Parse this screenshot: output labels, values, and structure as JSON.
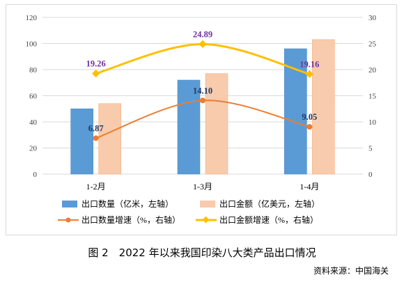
{
  "chart_data": {
    "type": "bar",
    "categories": [
      "1-2月",
      "1-3月",
      "1-4月"
    ],
    "y_left": {
      "ticks": [
        0,
        20,
        40,
        60,
        80,
        100,
        120
      ],
      "ylim": [
        0,
        120
      ]
    },
    "y_right": {
      "ticks": [
        0,
        5,
        10,
        15,
        20,
        25,
        30
      ],
      "ylim": [
        0,
        30
      ]
    },
    "grid": true,
    "legend_position": "bottom",
    "series": [
      {
        "name": "出口数量（亿米，左轴）",
        "type": "bar",
        "axis": "left",
        "color": "#5B9BD5",
        "values": [
          50,
          72,
          96
        ]
      },
      {
        "name": "出口金额（亿美元，左轴）",
        "type": "bar",
        "axis": "left",
        "color": "#F8CBAD",
        "values": [
          54,
          77,
          103
        ]
      },
      {
        "name": "出口数量增速（%，右轴）",
        "type": "line",
        "axis": "right",
        "color": "#ED7D31",
        "label_color": "#1F3864",
        "values": [
          6.87,
          14.1,
          9.05
        ],
        "labels": [
          "6.87",
          "14.10",
          "9.05"
        ]
      },
      {
        "name": "出口金额增速（%，右轴）",
        "type": "line",
        "axis": "right",
        "color": "#FFC000",
        "label_color": "#7030A0",
        "values": [
          19.26,
          24.89,
          19.16
        ],
        "labels": [
          "19.26",
          "24.89",
          "19.16"
        ]
      }
    ]
  },
  "caption": "图 2　2022 年以来我国印染八大类产品出口情况",
  "source": "资料来源：中国海关"
}
